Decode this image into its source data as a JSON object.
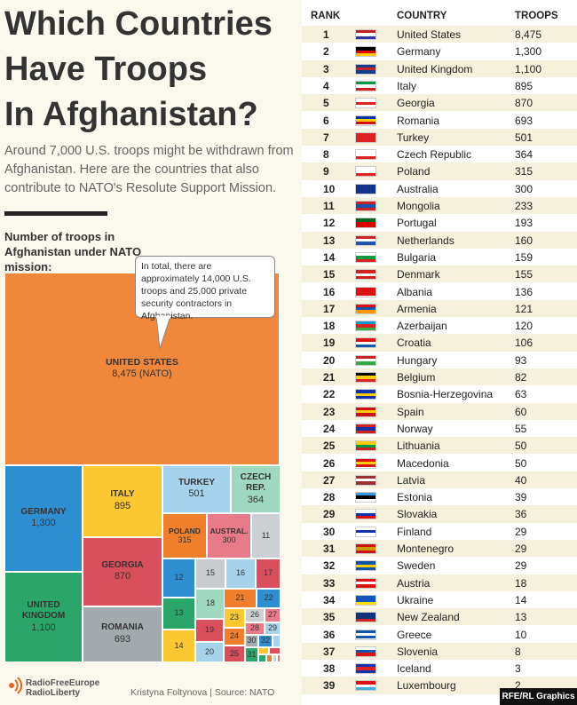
{
  "title_lines": [
    "Which Countries",
    "Have Troops",
    "In Afghanistan?"
  ],
  "subtitle": "Around 7,000 U.S. troops might be withdrawn from Afghanistan. Here are the countries that also contribute to NATO's Resolute Support Mission.",
  "chart_heading": "Number of troops in Afghanistan under NATO mission:",
  "callout": "In total, there are approximately 14,000 U.S. troops and 25,000 private security contractors in Afghanistan.",
  "chart_data": {
    "type": "treemap",
    "labels": [
      "UNITED STATES",
      "GERMANY",
      "UNITED KINGDOM",
      "ITALY",
      "GEORGIA",
      "ROMANIA",
      "TURKEY",
      "CZECH REP.",
      "POLAND",
      "AUSTRAL.",
      "11",
      "12",
      "13",
      "14",
      "15",
      "16",
      "17",
      "18",
      "19",
      "20",
      "21",
      "22",
      "23",
      "24",
      "25",
      "26",
      "27",
      "28",
      "29",
      "30",
      "31",
      "32",
      null,
      null,
      null,
      null,
      null,
      null,
      null
    ],
    "values": [
      8475,
      1300,
      1100,
      895,
      870,
      693,
      501,
      364,
      315,
      300,
      233,
      193,
      160,
      159,
      155,
      136,
      121,
      120,
      106,
      93,
      82,
      63,
      60,
      55,
      50,
      50,
      40,
      39,
      36,
      29,
      29,
      29,
      18,
      14,
      13,
      10,
      8,
      3,
      2
    ],
    "value_labels": [
      "8,475 (NATO)",
      "1,300",
      "1,100",
      "895",
      "870",
      "693",
      "501",
      "364",
      "315",
      "300",
      null,
      null,
      null,
      null,
      null,
      null,
      null,
      null,
      null,
      null,
      null,
      null,
      null,
      null,
      null,
      null,
      null,
      null,
      null,
      null,
      null,
      null,
      null,
      null,
      null,
      null,
      null,
      null,
      null
    ]
  },
  "table": {
    "headers": [
      "RANK",
      "COUNTRY",
      "TROOPS"
    ],
    "rows": [
      [
        1,
        "United States",
        "8,475"
      ],
      [
        2,
        "Germany",
        "1,300"
      ],
      [
        3,
        "United Kingdom",
        "1,100"
      ],
      [
        4,
        "Italy",
        895
      ],
      [
        5,
        "Georgia",
        870
      ],
      [
        6,
        "Romania",
        693
      ],
      [
        7,
        "Turkey",
        501
      ],
      [
        8,
        "Czech Republic",
        364
      ],
      [
        9,
        "Poland",
        315
      ],
      [
        10,
        "Australia",
        300
      ],
      [
        11,
        "Mongolia",
        233
      ],
      [
        12,
        "Portugal",
        193
      ],
      [
        13,
        "Netherlands",
        160
      ],
      [
        14,
        "Bulgaria",
        159
      ],
      [
        15,
        "Denmark",
        155
      ],
      [
        16,
        "Albania",
        136
      ],
      [
        17,
        "Armenia",
        121
      ],
      [
        18,
        "Azerbaijan",
        120
      ],
      [
        19,
        "Croatia",
        106
      ],
      [
        20,
        "Hungary",
        93
      ],
      [
        21,
        "Belgium",
        82
      ],
      [
        22,
        "Bosnia-Herzegovina",
        63
      ],
      [
        23,
        "Spain",
        60
      ],
      [
        24,
        "Norway",
        55
      ],
      [
        25,
        "Lithuania",
        50
      ],
      [
        26,
        "Macedonia",
        50
      ],
      [
        27,
        "Latvia",
        40
      ],
      [
        28,
        "Estonia",
        39
      ],
      [
        29,
        "Slovakia",
        36
      ],
      [
        30,
        "Finland",
        29
      ],
      [
        31,
        "Montenegro",
        29
      ],
      [
        32,
        "Sweden",
        29
      ],
      [
        33,
        "Austria",
        18
      ],
      [
        34,
        "Ukraine",
        14
      ],
      [
        35,
        "New Zealand",
        13
      ],
      [
        36,
        "Greece",
        10
      ],
      [
        37,
        "Slovenia",
        8
      ],
      [
        38,
        "Iceland",
        3
      ],
      [
        39,
        "Luxembourg",
        2
      ]
    ]
  },
  "footer": {
    "logo_lines": [
      "RadioFreeEurope",
      "RadioLiberty"
    ],
    "credit": "Kristyna Foltynova | Source: NATO",
    "badge": "RFE/RL Graphics"
  }
}
